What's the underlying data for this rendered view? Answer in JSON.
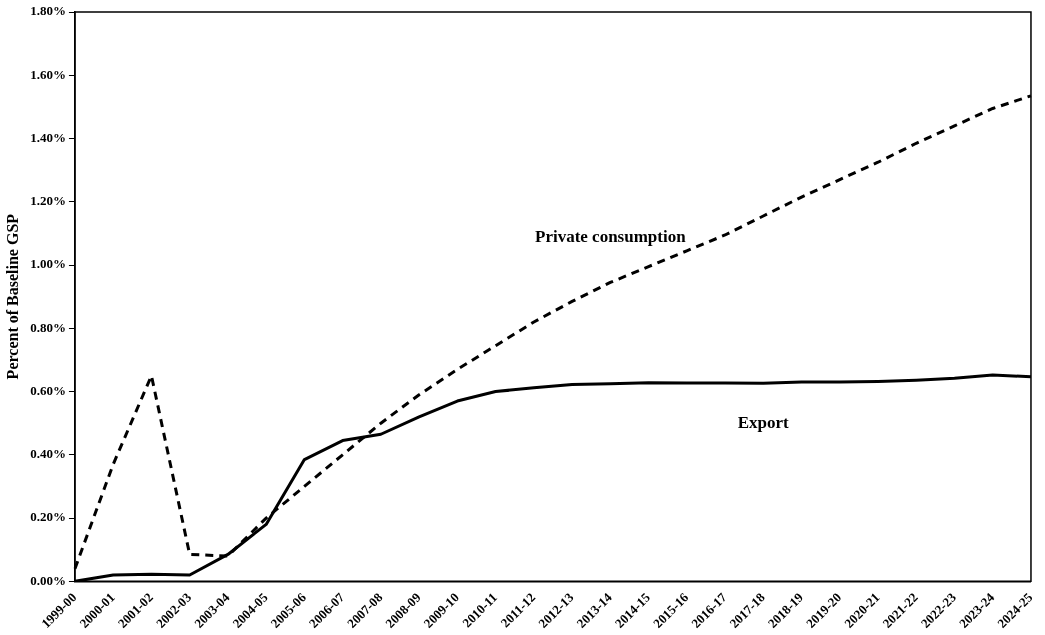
{
  "chart_data": {
    "type": "line",
    "ylabel": "Percent of Baseline GSP",
    "categories": [
      "1999-00",
      "2000-01",
      "2001-02",
      "2002-03",
      "2003-04",
      "2004-05",
      "2005-06",
      "2006-07",
      "2007-08",
      "2008-09",
      "2009-10",
      "2010-11",
      "2011-12",
      "2012-13",
      "2013-14",
      "2014-15",
      "2015-16",
      "2016-17",
      "2017-18",
      "2018-19",
      "2019-20",
      "2020-21",
      "2021-22",
      "2022-23",
      "2023-24",
      "2024-25"
    ],
    "series": [
      {
        "name": "Private consumption",
        "color": "#000000",
        "line_style": "dashed",
        "values": [
          0.04,
          0.37,
          0.65,
          0.085,
          0.08,
          0.2,
          0.3,
          0.4,
          0.5,
          0.59,
          0.67,
          0.745,
          0.82,
          0.885,
          0.945,
          0.995,
          1.045,
          1.095,
          1.155,
          1.215,
          1.27,
          1.325,
          1.385,
          1.44,
          1.495,
          1.535
        ]
      },
      {
        "name": "Export",
        "color": "#000000",
        "line_style": "solid",
        "values": [
          0.0,
          0.02,
          0.022,
          0.02,
          0.085,
          0.18,
          0.385,
          0.445,
          0.465,
          0.52,
          0.57,
          0.6,
          0.612,
          0.622,
          0.625,
          0.628,
          0.627,
          0.627,
          0.626,
          0.63,
          0.63,
          0.632,
          0.636,
          0.642,
          0.652,
          0.647
        ]
      }
    ],
    "ylim": [
      0,
      1.8
    ],
    "yticks": [
      {
        "value": 0,
        "label": "0.00%"
      },
      {
        "value": 0.2,
        "label": "0.20%"
      },
      {
        "value": 0.4,
        "label": "0.40%"
      },
      {
        "value": 0.6,
        "label": "0.60%"
      },
      {
        "value": 0.8,
        "label": "0.80%"
      },
      {
        "value": 1.0,
        "label": "1.00%"
      },
      {
        "value": 1.2,
        "label": "1.20%"
      },
      {
        "value": 1.4,
        "label": "1.40%"
      },
      {
        "value": 1.6,
        "label": "1.60%"
      },
      {
        "value": 1.8,
        "label": "1.80%"
      }
    ],
    "grid": false,
    "legend": false,
    "marker": "none"
  }
}
